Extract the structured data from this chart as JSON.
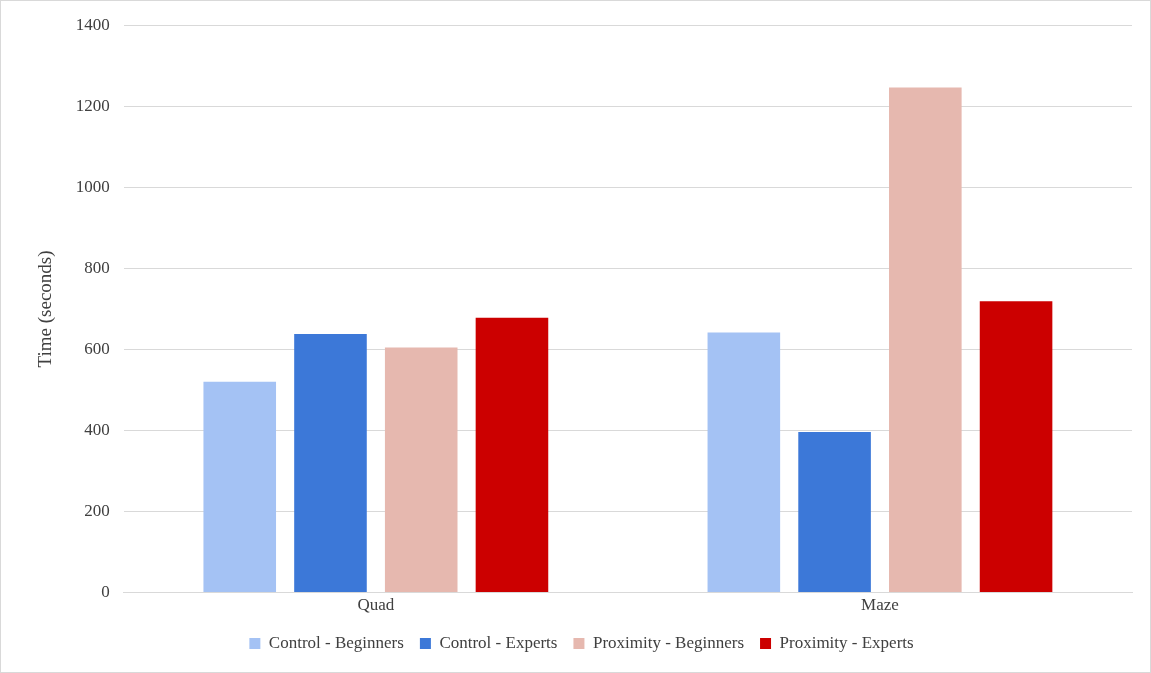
{
  "chart_data": {
    "type": "bar",
    "ylabel": "Time (seconds)",
    "categories": [
      "Quad",
      "Maze"
    ],
    "series": [
      {
        "name": "Control - Beginners",
        "color": "#a4c2f4",
        "values": [
          520,
          642
        ]
      },
      {
        "name": "Control - Experts",
        "color": "#3c78d8",
        "values": [
          638,
          396
        ]
      },
      {
        "name": "Proximity - Beginners",
        "color": "#e6b8af",
        "values": [
          605,
          1246
        ]
      },
      {
        "name": "Proximity - Experts",
        "color": "#cc0000",
        "values": [
          678,
          719
        ]
      }
    ],
    "ylim": [
      0,
      1400
    ],
    "yticks": [
      0,
      200,
      400,
      600,
      800,
      1000,
      1200,
      1400
    ],
    "grid": "y",
    "legend": "bottom"
  }
}
